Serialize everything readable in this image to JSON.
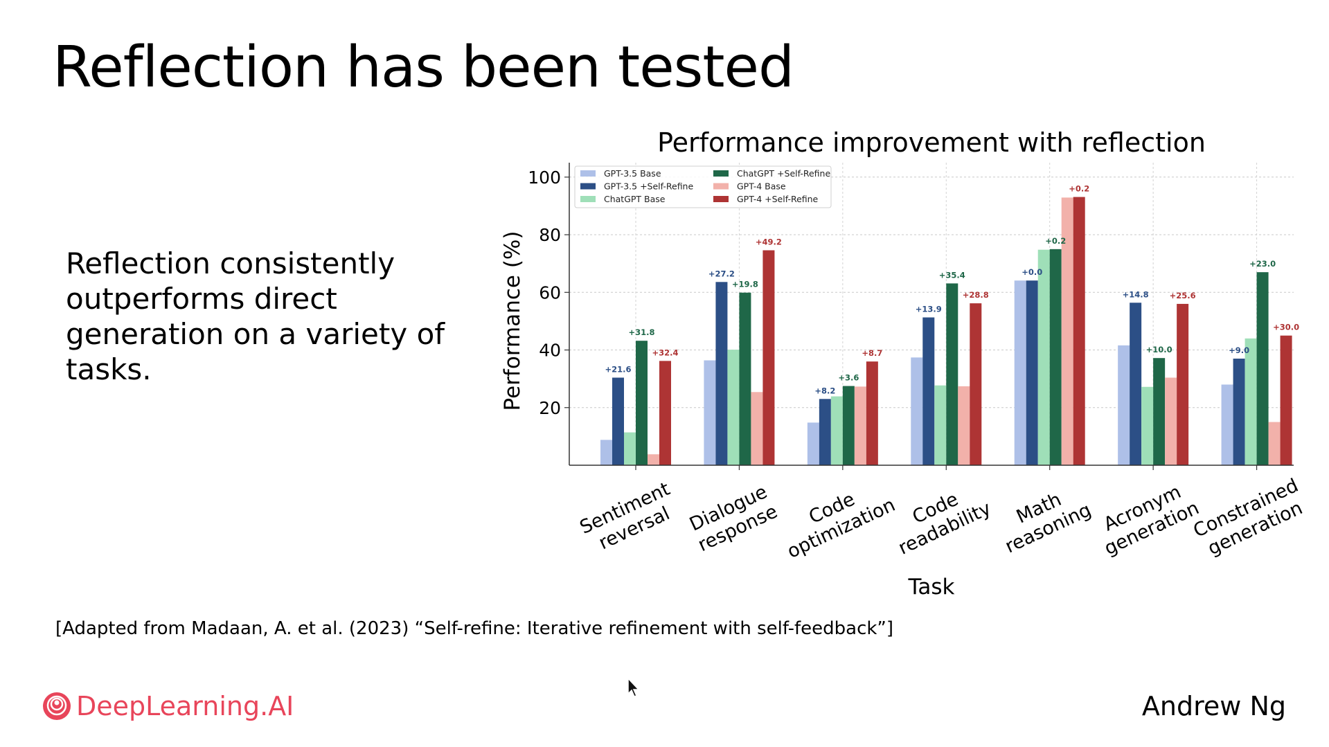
{
  "slide": {
    "title": "Reflection has been tested",
    "bullet": "Reflection consistently outperforms direct generation on a variety of tasks.",
    "citation": "[Adapted from Madaan, A. et al. (2023) “Self-refine: Iterative refinement with self-feedback”]",
    "logo_text": "DeepLearning.AI",
    "author": "Andrew Ng"
  },
  "chart_data": {
    "type": "bar",
    "title": "Performance improvement with reflection",
    "xlabel": "Task",
    "ylabel": "Performance (%)",
    "ylim": [
      0,
      105
    ],
    "yticks": [
      20,
      40,
      60,
      80,
      100
    ],
    "grid": true,
    "legend_position": "top-left",
    "categories": [
      [
        "Sentiment",
        "reversal"
      ],
      [
        "Dialogue",
        "response"
      ],
      [
        "Code",
        "optimization"
      ],
      [
        "Code",
        "readability"
      ],
      [
        "Math",
        "reasoning"
      ],
      [
        "Acronym",
        "generation"
      ],
      [
        "Constrained",
        "generation"
      ]
    ],
    "series": [
      {
        "name": "GPT-3.5 Base",
        "color": "#aec0e8",
        "values": [
          8.8,
          36.4,
          14.8,
          37.4,
          64.1,
          41.6,
          28.0
        ]
      },
      {
        "name": "GPT-3.5 +Self-Refine",
        "color": "#2c4f86",
        "values": [
          30.4,
          63.6,
          23.0,
          51.3,
          64.1,
          56.4,
          37.0
        ]
      },
      {
        "name": "ChatGPT Base",
        "color": "#9fdfb8",
        "values": [
          11.4,
          40.1,
          23.9,
          27.7,
          74.8,
          27.2,
          44.0
        ]
      },
      {
        "name": "ChatGPT +Self-Refine",
        "color": "#1f6748",
        "values": [
          43.2,
          59.9,
          27.5,
          63.1,
          75.0,
          37.2,
          67.0
        ]
      },
      {
        "name": "GPT-4 Base",
        "color": "#f2b1aa",
        "values": [
          3.8,
          25.4,
          27.3,
          27.4,
          92.9,
          30.4,
          15.0
        ]
      },
      {
        "name": "GPT-4 +Self-Refine",
        "color": "#ae3434",
        "values": [
          36.2,
          74.6,
          36.0,
          56.2,
          93.1,
          56.0,
          45.0
        ]
      }
    ],
    "annotations": [
      {
        "series": 1,
        "category": 0,
        "text": "+21.6"
      },
      {
        "series": 1,
        "category": 1,
        "text": "+27.2"
      },
      {
        "series": 1,
        "category": 2,
        "text": "+8.2"
      },
      {
        "series": 1,
        "category": 3,
        "text": "+13.9"
      },
      {
        "series": 1,
        "category": 4,
        "text": "+0.0"
      },
      {
        "series": 1,
        "category": 5,
        "text": "+14.8"
      },
      {
        "series": 1,
        "category": 6,
        "text": "+9.0"
      },
      {
        "series": 3,
        "category": 0,
        "text": "+31.8"
      },
      {
        "series": 3,
        "category": 1,
        "text": "+19.8"
      },
      {
        "series": 3,
        "category": 2,
        "text": "+3.6"
      },
      {
        "series": 3,
        "category": 3,
        "text": "+35.4"
      },
      {
        "series": 3,
        "category": 4,
        "text": "+0.2"
      },
      {
        "series": 3,
        "category": 5,
        "text": "+10.0"
      },
      {
        "series": 3,
        "category": 6,
        "text": "+23.0"
      },
      {
        "series": 5,
        "category": 0,
        "text": "+32.4"
      },
      {
        "series": 5,
        "category": 1,
        "text": "+49.2"
      },
      {
        "series": 5,
        "category": 2,
        "text": "+8.7"
      },
      {
        "series": 5,
        "category": 3,
        "text": "+28.8"
      },
      {
        "series": 5,
        "category": 4,
        "text": "+0.2"
      },
      {
        "series": 5,
        "category": 5,
        "text": "+25.6"
      },
      {
        "series": 5,
        "category": 6,
        "text": "+30.0"
      }
    ]
  },
  "icons": {
    "logo": "deeplearning-logo-icon",
    "cursor": "mouse-pointer-icon"
  }
}
